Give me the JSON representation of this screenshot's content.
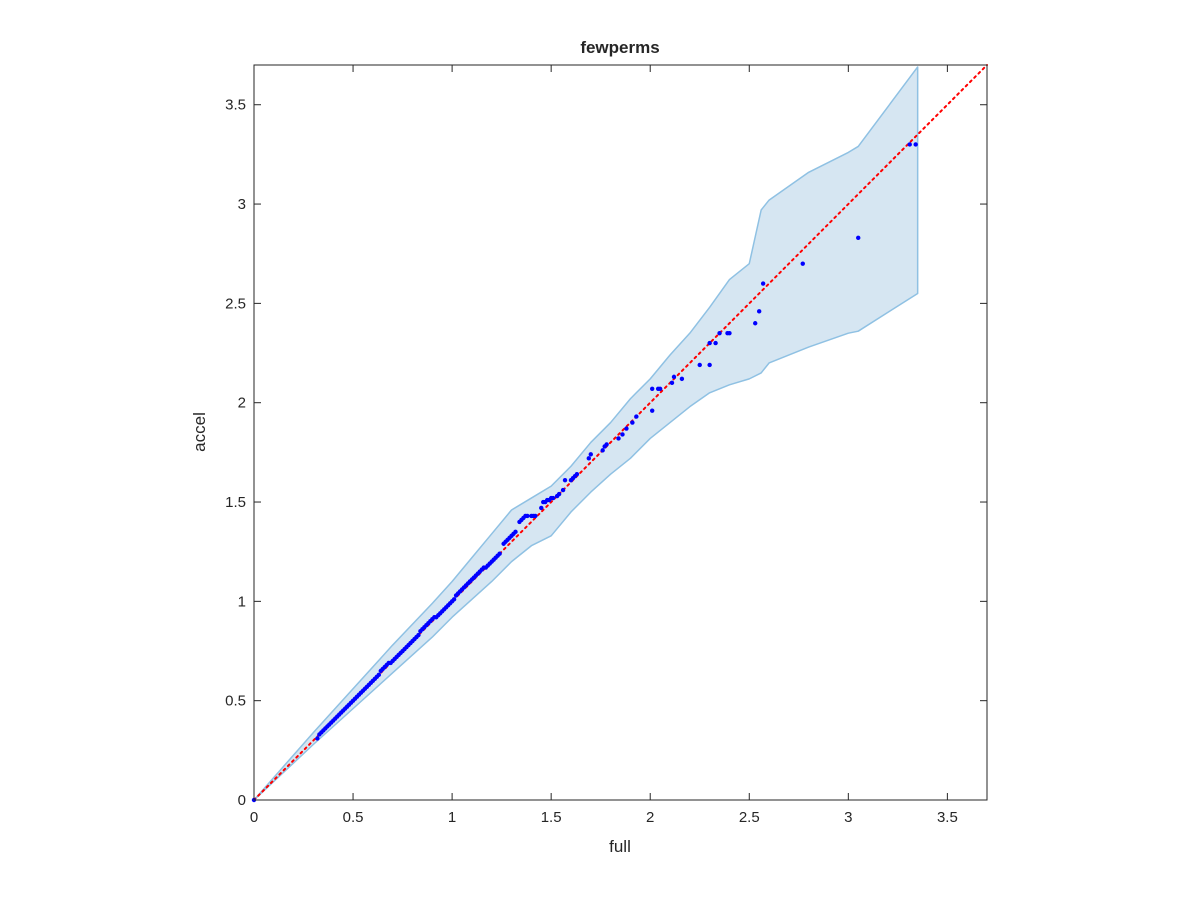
{
  "chart_data": {
    "type": "scatter",
    "title": "fewperms",
    "xlabel": "full",
    "ylabel": "accel",
    "xlim": [
      0,
      3.7
    ],
    "ylim": [
      0,
      3.7
    ],
    "grid": false,
    "xticks": [
      "0",
      "0.5",
      "1",
      "1.5",
      "2",
      "2.5",
      "3",
      "3.5"
    ],
    "yticks": [
      "0",
      "0.5",
      "1",
      "1.5",
      "2",
      "2.5",
      "3",
      "3.5"
    ],
    "reference_line": {
      "x": [
        0,
        3.7
      ],
      "y": [
        0,
        3.7
      ],
      "color": "#ff0000",
      "style": "dotted"
    },
    "confidence_band": {
      "fill": "#d6e6f2",
      "edge": "#8fc1e3",
      "x": [
        0,
        0.3,
        0.5,
        0.7,
        0.9,
        1.0,
        1.1,
        1.2,
        1.3,
        1.4,
        1.5,
        1.6,
        1.7,
        1.8,
        1.9,
        2.0,
        2.1,
        2.2,
        2.3,
        2.4,
        2.5,
        2.56,
        2.6,
        2.8,
        3.0,
        3.05,
        3.35,
        3.35
      ],
      "upper": [
        0,
        0.34,
        0.56,
        0.78,
        0.99,
        1.1,
        1.22,
        1.34,
        1.46,
        1.52,
        1.58,
        1.68,
        1.8,
        1.9,
        2.02,
        2.12,
        2.24,
        2.35,
        2.48,
        2.62,
        2.7,
        2.97,
        3.02,
        3.16,
        3.26,
        3.29,
        3.69,
        3.69
      ],
      "lower": [
        0,
        0.28,
        0.46,
        0.64,
        0.82,
        0.92,
        1.01,
        1.1,
        1.2,
        1.28,
        1.33,
        1.45,
        1.55,
        1.64,
        1.72,
        1.82,
        1.9,
        1.98,
        2.05,
        2.09,
        2.12,
        2.15,
        2.2,
        2.28,
        2.35,
        2.36,
        2.55,
        2.55
      ]
    },
    "series": [
      {
        "color": "#0000ff",
        "points": [
          [
            0,
            0
          ],
          [
            0.32,
            0.31
          ],
          [
            0.33,
            0.33
          ],
          [
            0.34,
            0.34
          ],
          [
            0.35,
            0.35
          ],
          [
            0.36,
            0.36
          ],
          [
            0.37,
            0.37
          ],
          [
            0.38,
            0.38
          ],
          [
            0.39,
            0.39
          ],
          [
            0.4,
            0.4
          ],
          [
            0.41,
            0.41
          ],
          [
            0.42,
            0.42
          ],
          [
            0.43,
            0.43
          ],
          [
            0.44,
            0.44
          ],
          [
            0.45,
            0.45
          ],
          [
            0.46,
            0.46
          ],
          [
            0.47,
            0.47
          ],
          [
            0.48,
            0.48
          ],
          [
            0.49,
            0.49
          ],
          [
            0.5,
            0.5
          ],
          [
            0.51,
            0.51
          ],
          [
            0.52,
            0.52
          ],
          [
            0.53,
            0.53
          ],
          [
            0.54,
            0.54
          ],
          [
            0.55,
            0.55
          ],
          [
            0.56,
            0.56
          ],
          [
            0.57,
            0.57
          ],
          [
            0.58,
            0.58
          ],
          [
            0.59,
            0.59
          ],
          [
            0.6,
            0.6
          ],
          [
            0.61,
            0.61
          ],
          [
            0.62,
            0.62
          ],
          [
            0.63,
            0.63
          ],
          [
            0.64,
            0.65
          ],
          [
            0.65,
            0.66
          ],
          [
            0.66,
            0.67
          ],
          [
            0.67,
            0.68
          ],
          [
            0.68,
            0.69
          ],
          [
            0.69,
            0.69
          ],
          [
            0.7,
            0.7
          ],
          [
            0.71,
            0.71
          ],
          [
            0.72,
            0.72
          ],
          [
            0.73,
            0.73
          ],
          [
            0.74,
            0.74
          ],
          [
            0.75,
            0.75
          ],
          [
            0.76,
            0.76
          ],
          [
            0.77,
            0.77
          ],
          [
            0.78,
            0.78
          ],
          [
            0.79,
            0.79
          ],
          [
            0.8,
            0.8
          ],
          [
            0.81,
            0.81
          ],
          [
            0.82,
            0.82
          ],
          [
            0.83,
            0.83
          ],
          [
            0.84,
            0.85
          ],
          [
            0.85,
            0.86
          ],
          [
            0.86,
            0.87
          ],
          [
            0.87,
            0.88
          ],
          [
            0.88,
            0.89
          ],
          [
            0.89,
            0.9
          ],
          [
            0.9,
            0.91
          ],
          [
            0.91,
            0.92
          ],
          [
            0.92,
            0.92
          ],
          [
            0.93,
            0.93
          ],
          [
            0.94,
            0.94
          ],
          [
            0.95,
            0.95
          ],
          [
            0.96,
            0.96
          ],
          [
            0.97,
            0.97
          ],
          [
            0.98,
            0.98
          ],
          [
            0.99,
            0.99
          ],
          [
            1.0,
            1.0
          ],
          [
            1.01,
            1.01
          ],
          [
            1.02,
            1.03
          ],
          [
            1.03,
            1.04
          ],
          [
            1.04,
            1.05
          ],
          [
            1.05,
            1.06
          ],
          [
            1.06,
            1.07
          ],
          [
            1.07,
            1.08
          ],
          [
            1.08,
            1.09
          ],
          [
            1.09,
            1.1
          ],
          [
            1.1,
            1.11
          ],
          [
            1.11,
            1.12
          ],
          [
            1.12,
            1.13
          ],
          [
            1.13,
            1.14
          ],
          [
            1.14,
            1.15
          ],
          [
            1.15,
            1.16
          ],
          [
            1.16,
            1.17
          ],
          [
            1.17,
            1.17
          ],
          [
            1.18,
            1.18
          ],
          [
            1.19,
            1.19
          ],
          [
            1.2,
            1.2
          ],
          [
            1.21,
            1.21
          ],
          [
            1.22,
            1.22
          ],
          [
            1.23,
            1.23
          ],
          [
            1.24,
            1.24
          ],
          [
            1.26,
            1.29
          ],
          [
            1.27,
            1.3
          ],
          [
            1.28,
            1.31
          ],
          [
            1.29,
            1.32
          ],
          [
            1.3,
            1.33
          ],
          [
            1.31,
            1.34
          ],
          [
            1.32,
            1.35
          ],
          [
            1.34,
            1.4
          ],
          [
            1.35,
            1.41
          ],
          [
            1.36,
            1.42
          ],
          [
            1.37,
            1.43
          ],
          [
            1.38,
            1.43
          ],
          [
            1.4,
            1.43
          ],
          [
            1.41,
            1.43
          ],
          [
            1.42,
            1.43
          ],
          [
            1.45,
            1.47
          ],
          [
            1.46,
            1.5
          ],
          [
            1.47,
            1.5
          ],
          [
            1.48,
            1.51
          ],
          [
            1.49,
            1.51
          ],
          [
            1.5,
            1.52
          ],
          [
            1.51,
            1.52
          ],
          [
            1.53,
            1.53
          ],
          [
            1.54,
            1.54
          ],
          [
            1.56,
            1.56
          ],
          [
            1.57,
            1.61
          ],
          [
            1.6,
            1.61
          ],
          [
            1.61,
            1.62
          ],
          [
            1.62,
            1.63
          ],
          [
            1.63,
            1.64
          ],
          [
            1.69,
            1.72
          ],
          [
            1.7,
            1.74
          ],
          [
            1.76,
            1.76
          ],
          [
            1.77,
            1.78
          ],
          [
            1.78,
            1.79
          ],
          [
            1.84,
            1.82
          ],
          [
            1.86,
            1.84
          ],
          [
            1.88,
            1.87
          ],
          [
            1.91,
            1.9
          ],
          [
            1.93,
            1.93
          ],
          [
            2.01,
            1.96
          ],
          [
            2.01,
            2.07
          ],
          [
            2.04,
            2.07
          ],
          [
            2.05,
            2.07
          ],
          [
            2.11,
            2.1
          ],
          [
            2.12,
            2.13
          ],
          [
            2.16,
            2.12
          ],
          [
            2.25,
            2.19
          ],
          [
            2.3,
            2.19
          ],
          [
            2.3,
            2.3
          ],
          [
            2.33,
            2.3
          ],
          [
            2.35,
            2.35
          ],
          [
            2.39,
            2.35
          ],
          [
            2.4,
            2.35
          ],
          [
            2.53,
            2.4
          ],
          [
            2.55,
            2.46
          ],
          [
            2.57,
            2.6
          ],
          [
            2.77,
            2.7
          ],
          [
            3.05,
            2.83
          ],
          [
            3.31,
            3.3
          ],
          [
            3.34,
            3.3
          ]
        ]
      }
    ]
  }
}
